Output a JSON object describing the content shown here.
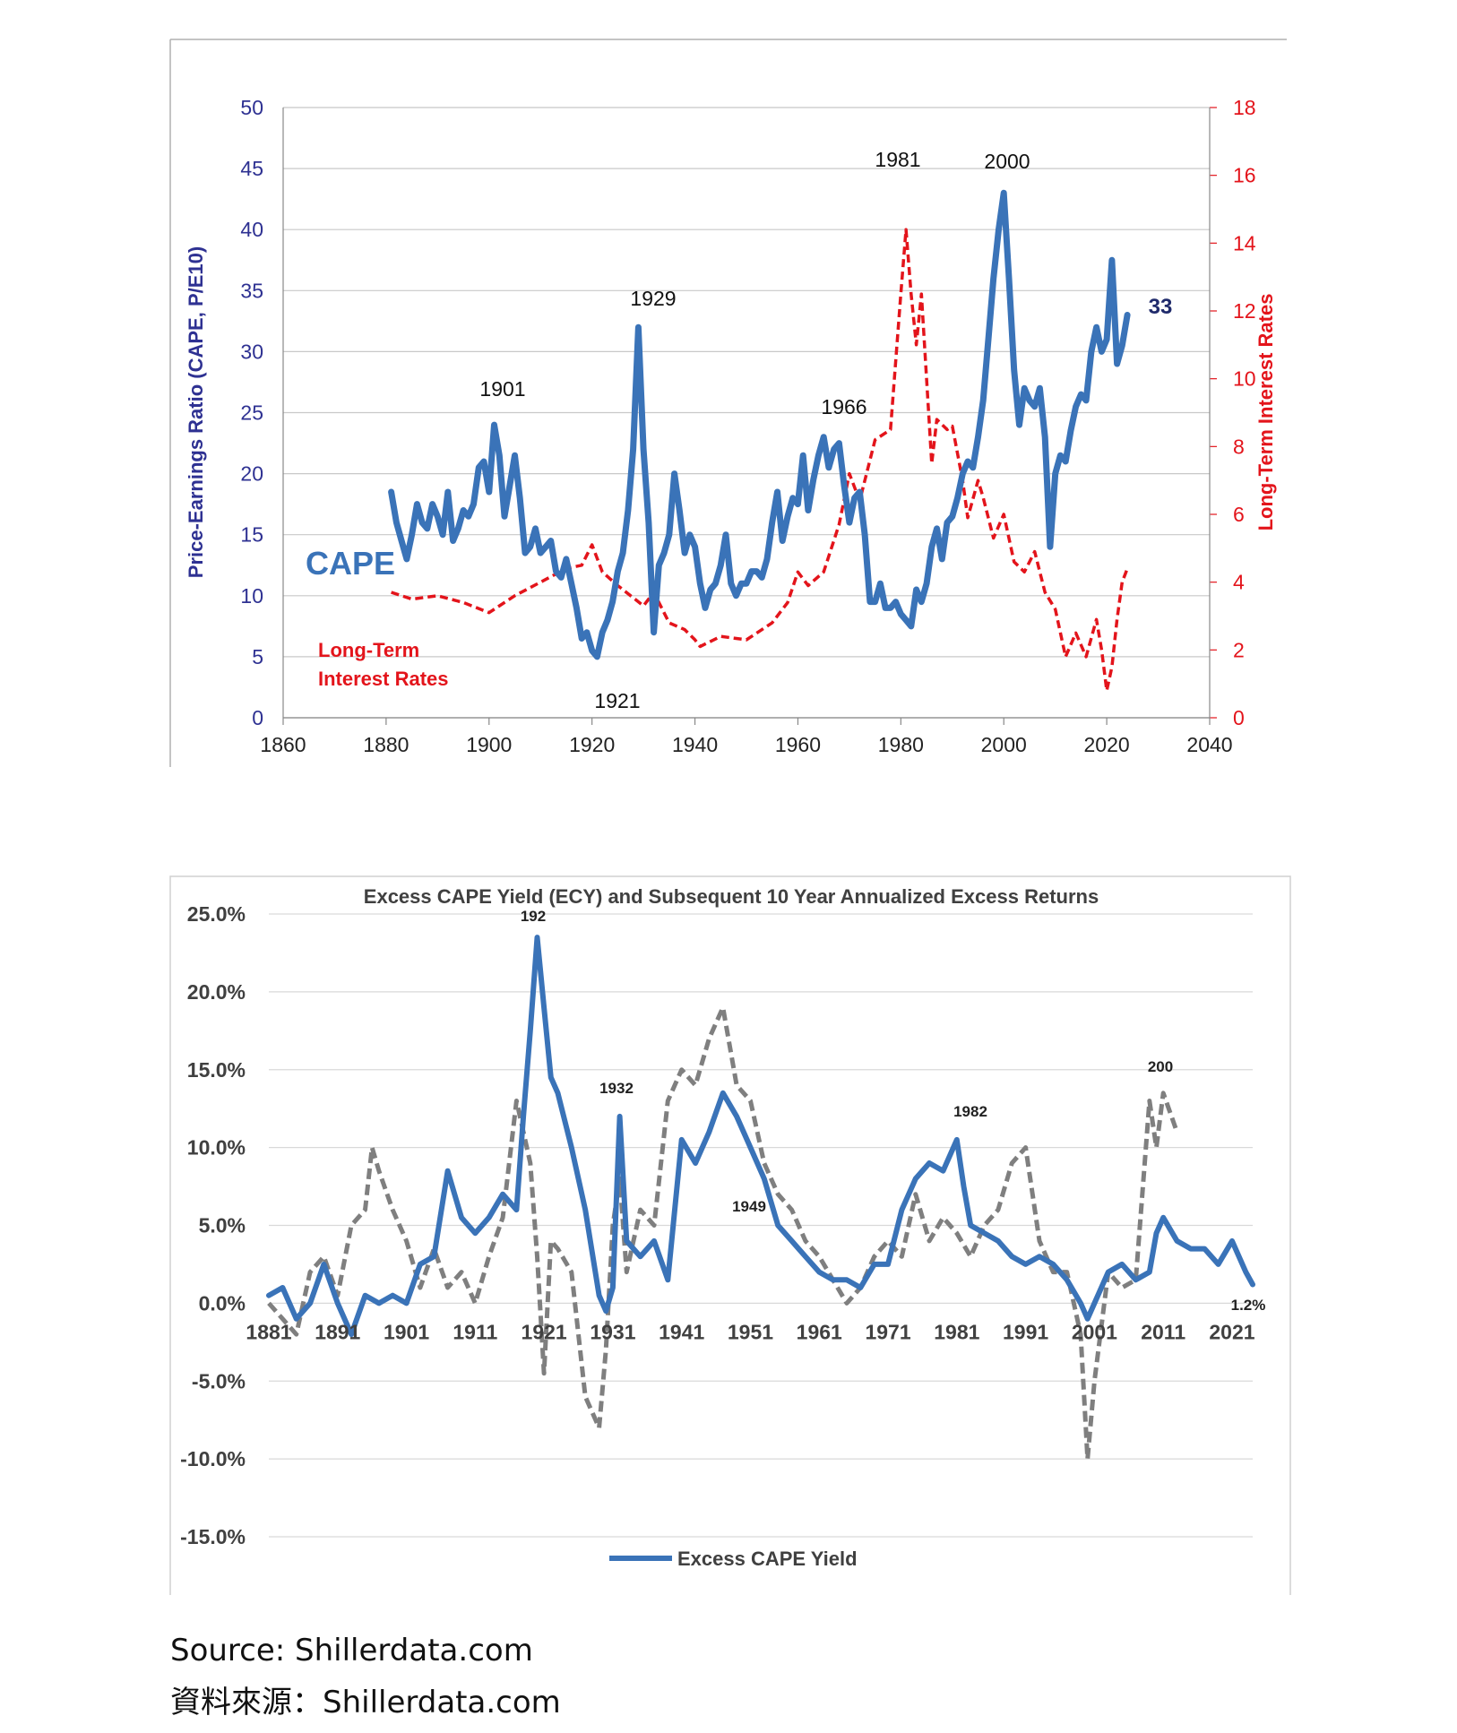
{
  "chart_data": [
    {
      "type": "line",
      "title": "",
      "xlabel": "",
      "ylabel": "Price-Earnings Ratio (CAPE, P/E10)",
      "y2label": "Long-Term Interest Rates",
      "xlim": [
        1860,
        2040
      ],
      "ylim": [
        0,
        50
      ],
      "y2lim": [
        0,
        18
      ],
      "x_ticks": [
        1860,
        1880,
        1900,
        1920,
        1940,
        1960,
        1980,
        2000,
        2020,
        2040
      ],
      "y_ticks": [
        0,
        5,
        10,
        15,
        20,
        25,
        30,
        35,
        40,
        45,
        50
      ],
      "y2_ticks": [
        0,
        2,
        4,
        6,
        8,
        10,
        12,
        14,
        16,
        18
      ],
      "grid": true,
      "colors": {
        "cape": "#3a73b8",
        "rates": "#e3141b",
        "left_axis": "#2e3192",
        "right_axis": "#e3141b",
        "grid": "#c8c8c8"
      },
      "series": [
        {
          "name": "CAPE",
          "axis": "left",
          "x": [
            1881,
            1882,
            1883,
            1884,
            1885,
            1886,
            1887,
            1888,
            1889,
            1890,
            1891,
            1892,
            1893,
            1894,
            1895,
            1896,
            1897,
            1898,
            1899,
            1900,
            1901,
            1902,
            1903,
            1904,
            1905,
            1906,
            1907,
            1908,
            1909,
            1910,
            1911,
            1912,
            1913,
            1914,
            1915,
            1916,
            1917,
            1918,
            1919,
            1920,
            1921,
            1922,
            1923,
            1924,
            1925,
            1926,
            1927,
            1928,
            1929,
            1930,
            1931,
            1932,
            1933,
            1934,
            1935,
            1936,
            1937,
            1938,
            1939,
            1940,
            1941,
            1942,
            1943,
            1944,
            1945,
            1946,
            1947,
            1948,
            1949,
            1950,
            1951,
            1952,
            1953,
            1954,
            1955,
            1956,
            1957,
            1958,
            1959,
            1960,
            1961,
            1962,
            1963,
            1964,
            1965,
            1966,
            1967,
            1968,
            1969,
            1970,
            1971,
            1972,
            1973,
            1974,
            1975,
            1976,
            1977,
            1978,
            1979,
            1980,
            1981,
            1982,
            1983,
            1984,
            1985,
            1986,
            1987,
            1988,
            1989,
            1990,
            1991,
            1992,
            1993,
            1994,
            1995,
            1996,
            1997,
            1998,
            1999,
            2000,
            2001,
            2002,
            2003,
            2004,
            2005,
            2006,
            2007,
            2008,
            2009,
            2010,
            2011,
            2012,
            2013,
            2014,
            2015,
            2016,
            2017,
            2018,
            2019,
            2020,
            2021,
            2022,
            2023,
            2024
          ],
          "values": [
            18.5,
            16.0,
            14.5,
            13.0,
            15.0,
            17.5,
            16.0,
            15.5,
            17.5,
            16.5,
            15.0,
            18.5,
            14.5,
            15.5,
            17.0,
            16.5,
            17.5,
            20.5,
            21.0,
            18.5,
            24.0,
            21.5,
            16.5,
            19.0,
            21.5,
            18.0,
            13.5,
            14.0,
            15.5,
            13.5,
            14.0,
            14.5,
            12.0,
            11.5,
            13.0,
            11.0,
            9.0,
            6.5,
            7.0,
            5.5,
            5.0,
            7.0,
            8.0,
            9.5,
            12.0,
            13.5,
            17.0,
            22.0,
            32.0,
            22.0,
            16.0,
            7.0,
            12.5,
            13.5,
            15.0,
            20.0,
            17.0,
            13.5,
            15.0,
            14.0,
            11.0,
            9.0,
            10.5,
            11.0,
            12.5,
            15.0,
            11.0,
            10.0,
            11.0,
            11.0,
            12.0,
            12.0,
            11.5,
            13.0,
            16.0,
            18.5,
            14.5,
            16.5,
            18.0,
            17.5,
            21.5,
            17.0,
            19.5,
            21.5,
            23.0,
            20.5,
            22.0,
            22.5,
            19.0,
            16.0,
            18.0,
            18.5,
            15.0,
            9.5,
            9.5,
            11.0,
            9.0,
            9.0,
            9.5,
            8.5,
            8.0,
            7.5,
            10.5,
            9.5,
            11.0,
            14.0,
            15.5,
            13.0,
            16.0,
            16.5,
            18.0,
            20.0,
            21.0,
            20.5,
            23.0,
            26.0,
            31.0,
            36.0,
            40.0,
            43.0,
            36.0,
            28.5,
            24.0,
            27.0,
            26.0,
            25.5,
            27.0,
            23.0,
            14.0,
            20.0,
            21.5,
            21.0,
            23.5,
            25.5,
            26.5,
            26.0,
            30.0,
            32.0,
            30.0,
            31.0,
            37.5,
            29.0,
            30.5,
            33.0
          ]
        },
        {
          "name": "Long-Term Interest Rates",
          "axis": "right",
          "x": [
            1881,
            1885,
            1890,
            1895,
            1900,
            1905,
            1910,
            1915,
            1918,
            1920,
            1922,
            1925,
            1930,
            1932,
            1935,
            1938,
            1940,
            1941,
            1945,
            1950,
            1955,
            1958,
            1960,
            1962,
            1965,
            1968,
            1970,
            1972,
            1975,
            1978,
            1980,
            1981,
            1982,
            1983,
            1984,
            1986,
            1987,
            1989,
            1990,
            1992,
            1993,
            1995,
            1996,
            1998,
            2000,
            2002,
            2004,
            2006,
            2008,
            2010,
            2012,
            2014,
            2016,
            2018,
            2019,
            2020,
            2021,
            2022,
            2023,
            2024
          ],
          "values": [
            3.7,
            3.5,
            3.6,
            3.4,
            3.1,
            3.6,
            4.0,
            4.4,
            4.5,
            5.1,
            4.3,
            3.9,
            3.3,
            3.7,
            2.8,
            2.6,
            2.3,
            2.1,
            2.4,
            2.3,
            2.8,
            3.4,
            4.3,
            3.9,
            4.3,
            5.7,
            7.2,
            6.4,
            8.2,
            8.5,
            12.5,
            14.4,
            12.5,
            11.0,
            12.5,
            7.5,
            8.8,
            8.5,
            8.6,
            7.0,
            5.9,
            7.0,
            6.5,
            5.3,
            6.0,
            4.6,
            4.3,
            4.9,
            3.7,
            3.2,
            1.8,
            2.5,
            1.8,
            2.9,
            2.0,
            0.8,
            1.5,
            2.9,
            4.0,
            4.4
          ]
        }
      ],
      "annotations": [
        {
          "text": "1901",
          "x": 1901
        },
        {
          "text": "1921",
          "x": 1921
        },
        {
          "text": "1929",
          "x": 1929
        },
        {
          "text": "1966",
          "x": 1966
        },
        {
          "text": "1981",
          "x": 1981
        },
        {
          "text": "2000",
          "x": 2000
        },
        {
          "text": "33",
          "x": 2024
        }
      ],
      "legend_labels": {
        "cape": "CAPE",
        "rates_line1": "Long-Term",
        "rates_line2": "Interest Rates"
      }
    },
    {
      "type": "line",
      "title": "Excess CAPE Yield (ECY) and Subsequent 10 Year Annualized Excess Returns",
      "xlabel": "",
      "ylabel": "",
      "xlim": [
        1881,
        2024
      ],
      "ylim": [
        -15,
        25
      ],
      "x_ticks": [
        "1881",
        "1891",
        "1901",
        "1911",
        "1921",
        "1931",
        "1941",
        "1951",
        "1961",
        "1971",
        "1981",
        "1991",
        "2001",
        "2011",
        "2021"
      ],
      "y_ticks": [
        "25.0%",
        "20.0%",
        "15.0%",
        "10.0%",
        "5.0%",
        "0.0%",
        "-5.0%",
        "-10.0%",
        "-15.0%"
      ],
      "y_tick_values": [
        25,
        20,
        15,
        10,
        5,
        0,
        -5,
        -10,
        -15
      ],
      "grid": true,
      "legend": "bottom-center",
      "colors": {
        "ecy": "#3a73b8",
        "returns": "#7f7f7f",
        "grid": "#d9d9d9",
        "text": "#404040"
      },
      "series": [
        {
          "name": "Excess CAPE Yield",
          "x": [
            1881,
            1883,
            1885,
            1887,
            1889,
            1891,
            1893,
            1895,
            1897,
            1899,
            1901,
            1903,
            1905,
            1907,
            1909,
            1911,
            1913,
            1915,
            1917,
            1918,
            1919,
            1920,
            1921,
            1922,
            1923,
            1925,
            1927,
            1929,
            1930,
            1931,
            1932,
            1933,
            1935,
            1937,
            1939,
            1941,
            1943,
            1945,
            1947,
            1949,
            1951,
            1953,
            1955,
            1957,
            1959,
            1961,
            1963,
            1965,
            1967,
            1969,
            1971,
            1973,
            1975,
            1977,
            1979,
            1981,
            1982,
            1983,
            1985,
            1987,
            1989,
            1991,
            1993,
            1995,
            1997,
            1999,
            2000,
            2001,
            2003,
            2005,
            2007,
            2009,
            2010,
            2011,
            2013,
            2015,
            2017,
            2019,
            2021,
            2023,
            2024
          ],
          "values": [
            0.5,
            1.0,
            -1.0,
            0.0,
            2.5,
            0.0,
            -2.0,
            0.5,
            0.0,
            0.5,
            0.0,
            2.5,
            3.0,
            8.5,
            5.5,
            4.5,
            5.5,
            7.0,
            6.0,
            12.0,
            17.5,
            23.5,
            19.0,
            14.5,
            13.5,
            10.0,
            6.0,
            0.5,
            -0.5,
            1.0,
            12.0,
            4.0,
            3.0,
            4.0,
            1.5,
            10.5,
            9.0,
            11.0,
            13.5,
            12.0,
            10.0,
            8.0,
            5.0,
            4.0,
            3.0,
            2.0,
            1.5,
            1.5,
            1.0,
            2.5,
            2.5,
            6.0,
            8.0,
            9.0,
            8.5,
            10.5,
            7.5,
            5.0,
            4.5,
            4.0,
            3.0,
            2.5,
            3.0,
            2.5,
            1.5,
            0.0,
            -1.0,
            0.0,
            2.0,
            2.5,
            1.5,
            2.0,
            4.5,
            5.5,
            4.0,
            3.5,
            3.5,
            2.5,
            4.0,
            2.0,
            1.2
          ]
        },
        {
          "name": "",
          "x": [
            1881,
            1883,
            1885,
            1887,
            1889,
            1891,
            1893,
            1895,
            1896,
            1897,
            1899,
            1901,
            1903,
            1905,
            1907,
            1909,
            1911,
            1913,
            1915,
            1917,
            1919,
            1920,
            1921,
            1922,
            1923,
            1925,
            1927,
            1929,
            1930,
            1931,
            1932,
            1933,
            1935,
            1937,
            1939,
            1941,
            1943,
            1945,
            1947,
            1949,
            1951,
            1953,
            1955,
            1957,
            1959,
            1961,
            1963,
            1965,
            1967,
            1969,
            1971,
            1973,
            1975,
            1977,
            1979,
            1981,
            1983,
            1985,
            1987,
            1989,
            1991,
            1993,
            1995,
            1997,
            1999,
            2000,
            2001,
            2003,
            2005,
            2007,
            2009,
            2010,
            2011,
            2013
          ],
          "values": [
            0.0,
            -1.0,
            -2.0,
            2.0,
            3.0,
            0.5,
            5.0,
            6.0,
            10.0,
            8.5,
            6.0,
            4.0,
            1.0,
            3.5,
            1.0,
            2.0,
            0.0,
            3.0,
            5.5,
            13.0,
            9.0,
            3.0,
            -4.5,
            4.0,
            3.5,
            2.0,
            -6.0,
            -8.0,
            -3.0,
            5.0,
            8.0,
            2.0,
            6.0,
            5.0,
            13.0,
            15.0,
            14.0,
            17.0,
            19.0,
            14.0,
            13.0,
            9.0,
            7.0,
            6.0,
            4.0,
            3.0,
            1.5,
            0.0,
            1.0,
            3.0,
            4.0,
            3.0,
            7.0,
            4.0,
            5.5,
            4.5,
            3.0,
            5.0,
            6.0,
            9.0,
            10.0,
            4.0,
            2.0,
            2.0,
            -2.0,
            -10.0,
            -5.0,
            2.0,
            1.0,
            1.5,
            13.0,
            10.0,
            13.5,
            11.0
          ]
        }
      ],
      "annotations": [
        {
          "text": "192",
          "x": 1921
        },
        {
          "text": "1932",
          "x": 1932
        },
        {
          "text": "1949",
          "x": 1949
        },
        {
          "text": "1982",
          "x": 1982
        },
        {
          "text": "200",
          "x": 2011
        },
        {
          "text": "1.2%",
          "x": 2024
        }
      ]
    }
  ],
  "source": {
    "line_en": "Source: Shillerdata.com",
    "line_zh": "資料來源：Shillerdata.com"
  }
}
